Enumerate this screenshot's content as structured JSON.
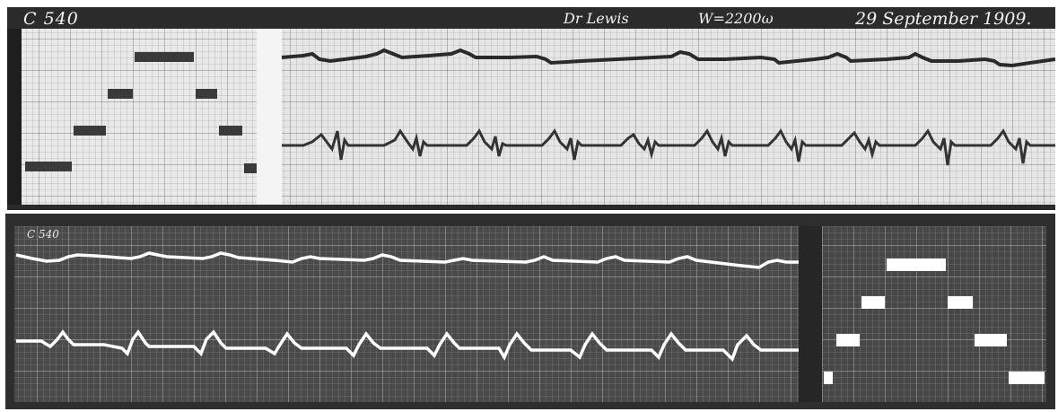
{
  "top_plate": {
    "id": "C 540",
    "observer": "Dr Lewis",
    "resistance": "W=2200ω",
    "date": "29 September 1909."
  },
  "bottom_plate": {
    "id": "C 540"
  },
  "colors": {
    "top_background": "#e9e9e9",
    "top_grid": "#9a9a9a",
    "top_trace": "#2a2a2a",
    "bottom_background": "#4a4a4a",
    "bottom_grid": "#bdbdbd",
    "bottom_trace": "#ffffff"
  }
}
